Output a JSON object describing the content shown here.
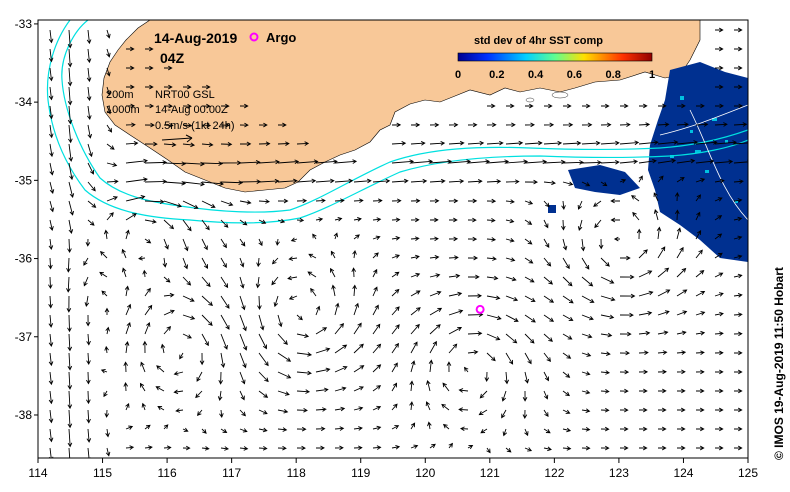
{
  "header": {
    "date": "14-Aug-2019",
    "time": "04Z",
    "argo_label": "Argo"
  },
  "info": {
    "line_200": "200m",
    "line_1000": "1000m",
    "product": "NRT00 GSL",
    "timestamp": "14-Aug 00:00Z",
    "scale": "0.5m/s (1kt 24h)"
  },
  "colorbar": {
    "title": "std dev of 4hr SST comp",
    "ticks": [
      "0",
      "0.2",
      "0.4",
      "0.6",
      "0.8",
      "1"
    ]
  },
  "axes": {
    "x_ticks": [
      "114",
      "115",
      "116",
      "117",
      "118",
      "119",
      "120",
      "121",
      "122",
      "123",
      "124",
      "125"
    ],
    "y_ticks": [
      "-33",
      "-34",
      "-35",
      "-36",
      "-37",
      "-38"
    ]
  },
  "credit": "© IMOS 19-Aug-2019 11:50 Hobart",
  "colors": {
    "land": "#f8c898",
    "isobath": "#00e0e0",
    "argo": "#ff00ff",
    "sst_low": "#003090"
  },
  "argo_float": {
    "lon": 120.85,
    "lat": -36.65
  }
}
